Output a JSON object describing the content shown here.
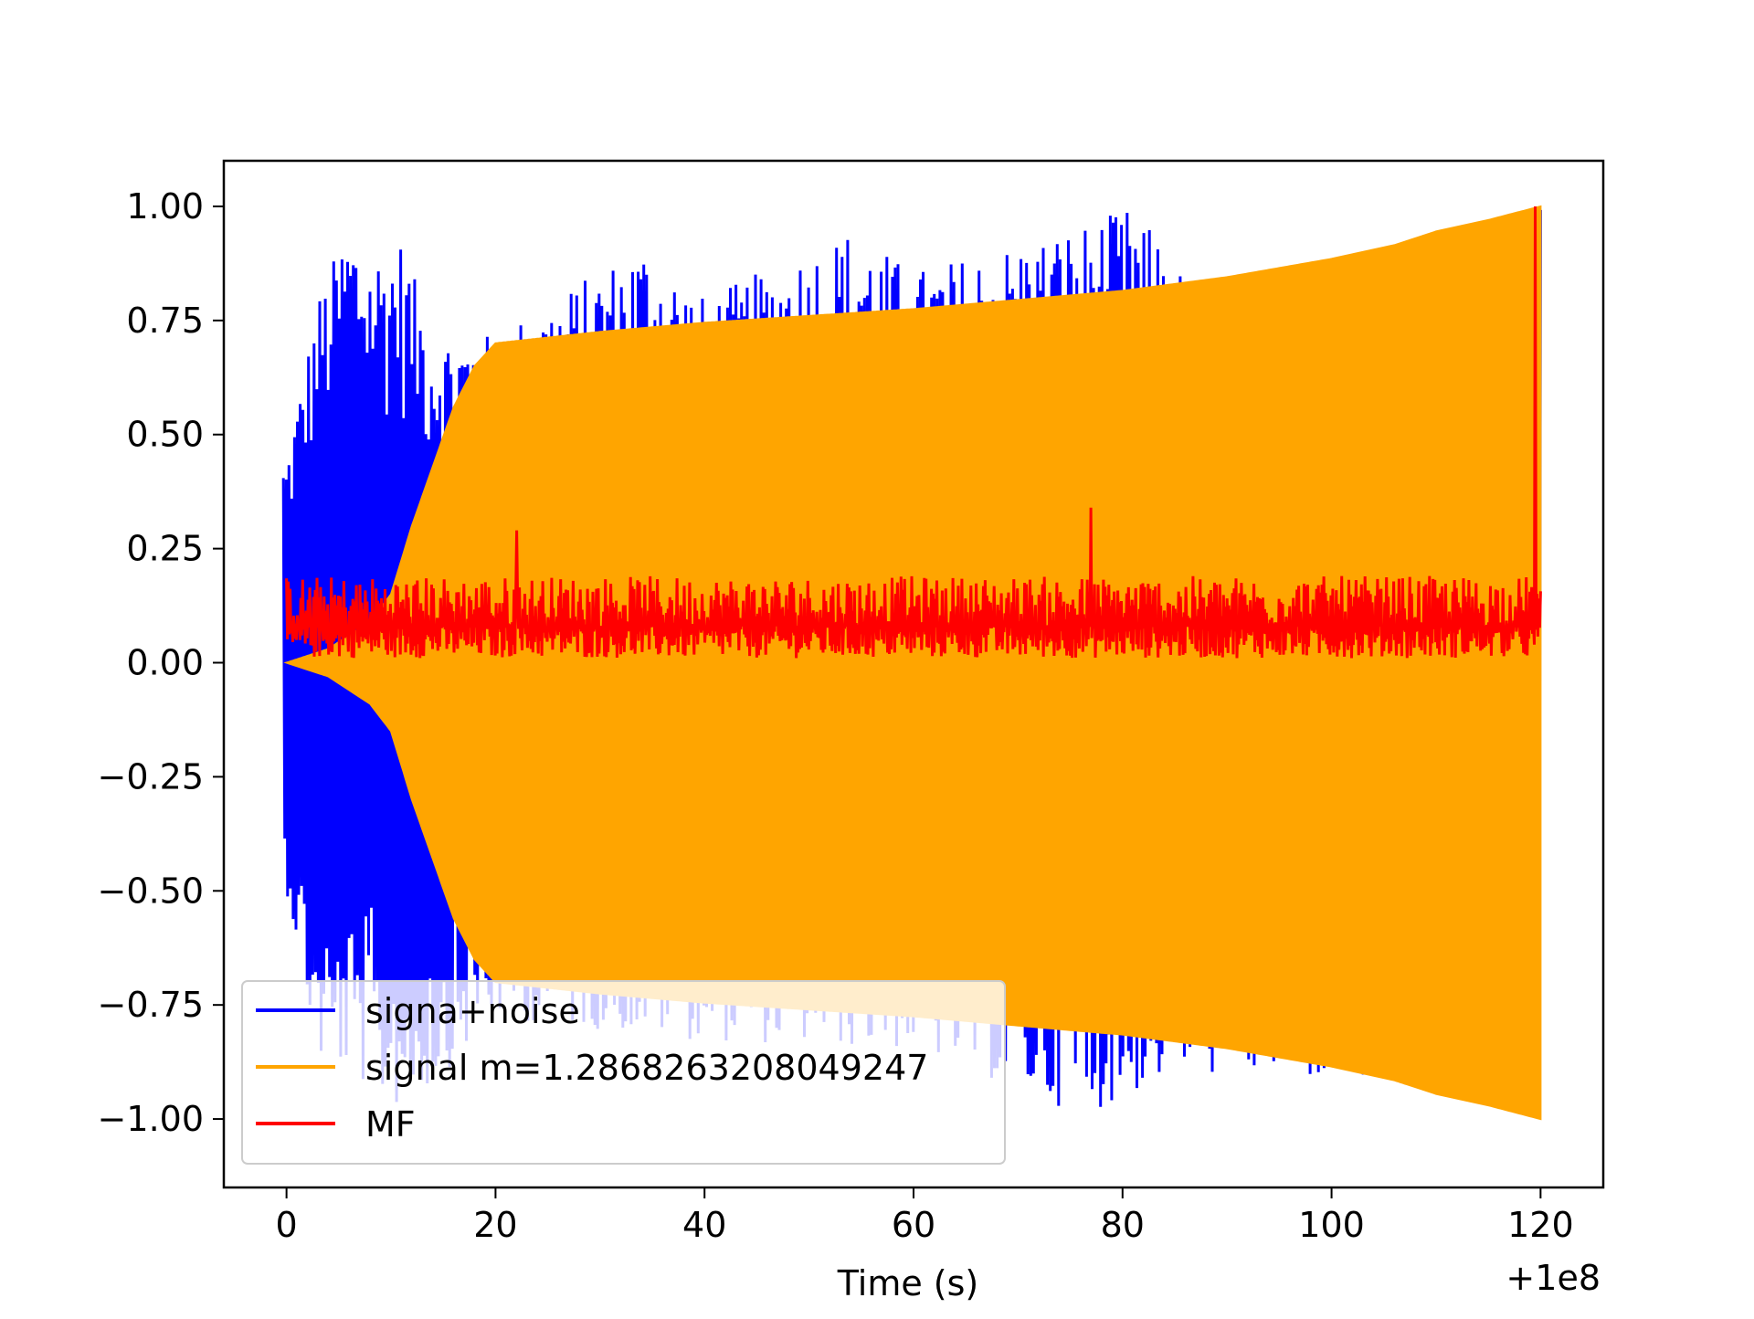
{
  "chart_data": {
    "type": "line",
    "title": "",
    "xlabel": "Time (s)",
    "ylabel": "",
    "x_offset_label": "+1e8",
    "xlim": [
      -6,
      126
    ],
    "ylim": [
      -1.15,
      1.1
    ],
    "x_ticks": [
      0,
      20,
      40,
      60,
      80,
      100,
      120
    ],
    "x_tick_labels": [
      "0",
      "20",
      "40",
      "60",
      "80",
      "100",
      "120"
    ],
    "y_ticks": [
      1.0,
      0.75,
      0.5,
      0.25,
      0.0,
      -0.25,
      -0.5,
      -0.75,
      -1.0
    ],
    "y_tick_labels": [
      "1.00",
      "0.75",
      "0.50",
      "0.25",
      "0.00",
      "−0.25",
      "−0.50",
      "−0.75",
      "−1.00"
    ],
    "grid": false,
    "legend_position": "lower-left",
    "series": [
      {
        "name": "signa+noise",
        "color": "#0000ff",
        "x_range": [
          -0.3,
          120
        ],
        "peak_envelope_upper": [
          [
            0,
            0.45
          ],
          [
            3,
            0.8
          ],
          [
            6,
            0.97
          ],
          [
            8,
            0.9
          ],
          [
            11,
            0.93
          ],
          [
            14,
            0.72
          ],
          [
            20,
            0.72
          ],
          [
            34,
            0.92
          ],
          [
            40,
            0.8
          ],
          [
            54,
            0.95
          ],
          [
            60,
            0.86
          ],
          [
            76,
            0.96
          ],
          [
            81,
            1.0
          ],
          [
            88,
            0.79
          ],
          [
            98,
            0.89
          ],
          [
            110,
            0.93
          ],
          [
            120,
            1.0
          ]
        ],
        "peak_envelope_lower": [
          [
            0,
            -0.5
          ],
          [
            3,
            -0.88
          ],
          [
            6,
            -0.9
          ],
          [
            10,
            -0.98
          ],
          [
            13,
            -0.95
          ],
          [
            20,
            -0.78
          ],
          [
            40,
            -0.83
          ],
          [
            60,
            -0.85
          ],
          [
            76,
            -0.99
          ],
          [
            80,
            -0.96
          ],
          [
            85,
            -0.9
          ],
          [
            100,
            -0.92
          ],
          [
            120,
            -1.0
          ]
        ]
      },
      {
        "name": "signal m=1.2868263208049247",
        "color": "#ffa500",
        "x_range": [
          0,
          120
        ],
        "envelope_upper": [
          [
            0,
            0.0
          ],
          [
            4,
            0.03
          ],
          [
            8,
            0.09
          ],
          [
            10,
            0.15
          ],
          [
            12,
            0.3
          ],
          [
            14,
            0.43
          ],
          [
            16,
            0.56
          ],
          [
            18,
            0.65
          ],
          [
            20,
            0.7
          ],
          [
            24,
            0.71
          ],
          [
            30,
            0.725
          ],
          [
            40,
            0.745
          ],
          [
            50,
            0.76
          ],
          [
            60,
            0.775
          ],
          [
            70,
            0.795
          ],
          [
            80,
            0.815
          ],
          [
            90,
            0.845
          ],
          [
            100,
            0.885
          ],
          [
            106,
            0.915
          ],
          [
            108,
            0.93
          ],
          [
            110,
            0.945
          ],
          [
            115,
            0.97
          ],
          [
            120,
            1.0
          ]
        ],
        "envelope_lower": [
          [
            0,
            0.0
          ],
          [
            4,
            -0.03
          ],
          [
            8,
            -0.09
          ],
          [
            10,
            -0.15
          ],
          [
            12,
            -0.3
          ],
          [
            14,
            -0.43
          ],
          [
            16,
            -0.56
          ],
          [
            18,
            -0.65
          ],
          [
            20,
            -0.7
          ],
          [
            24,
            -0.71
          ],
          [
            30,
            -0.725
          ],
          [
            40,
            -0.745
          ],
          [
            50,
            -0.76
          ],
          [
            60,
            -0.775
          ],
          [
            70,
            -0.795
          ],
          [
            80,
            -0.815
          ],
          [
            90,
            -0.845
          ],
          [
            100,
            -0.885
          ],
          [
            106,
            -0.915
          ],
          [
            108,
            -0.93
          ],
          [
            110,
            -0.945
          ],
          [
            115,
            -0.97
          ],
          [
            120,
            -1.0
          ]
        ]
      },
      {
        "name": "MF",
        "color": "#ff0000",
        "x_range": [
          0,
          120
        ],
        "baseline": 0.08,
        "band": [
          0.01,
          0.19
        ],
        "notable_peaks": [
          [
            22,
            0.29
          ],
          [
            77,
            0.34
          ],
          [
            119.5,
            1.0
          ]
        ]
      }
    ]
  }
}
